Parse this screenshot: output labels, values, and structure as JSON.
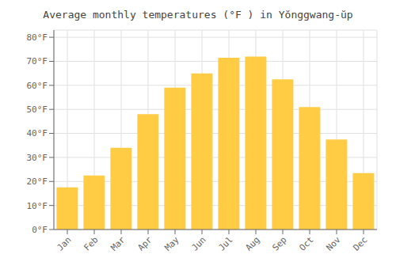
{
  "chart_data": {
    "type": "bar",
    "title": "Average monthly temperatures (°F ) in Yŏnggwang-ŭp",
    "categories": [
      "Jan",
      "Feb",
      "Mar",
      "Apr",
      "May",
      "Jun",
      "Jul",
      "Aug",
      "Sep",
      "Oct",
      "Nov",
      "Dec"
    ],
    "values": [
      17.5,
      22.5,
      34,
      48,
      59,
      65,
      71.5,
      72,
      62.5,
      51,
      37.5,
      23.5
    ],
    "color": "#FFCC44",
    "ylim": [
      0,
      83
    ],
    "yticks": [
      {
        "value": 0,
        "label": "0°F"
      },
      {
        "value": 10,
        "label": "10°F"
      },
      {
        "value": 20,
        "label": "20°F"
      },
      {
        "value": 30,
        "label": "30°F"
      },
      {
        "value": 40,
        "label": "40°F"
      },
      {
        "value": 50,
        "label": "50°F"
      },
      {
        "value": 60,
        "label": "60°F"
      },
      {
        "value": 70,
        "label": "70°F"
      },
      {
        "value": 80,
        "label": "80°F"
      }
    ],
    "grid": true
  }
}
